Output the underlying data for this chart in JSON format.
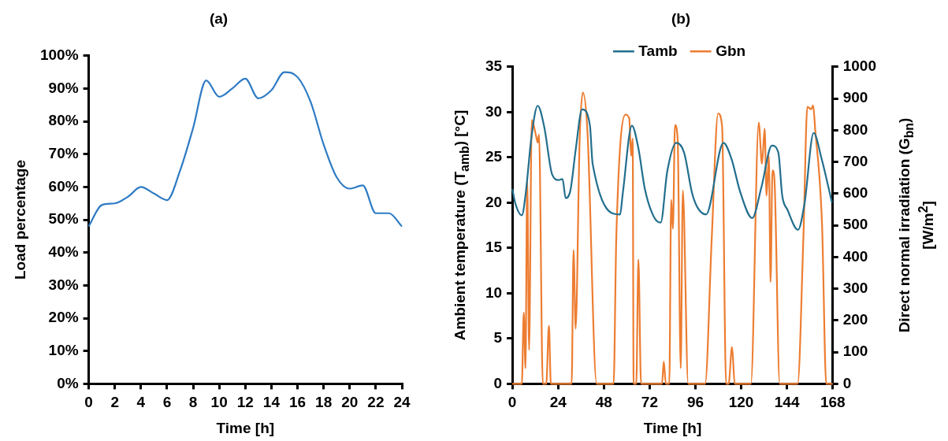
{
  "chart_data": [
    {
      "type": "line",
      "title": "(a)",
      "xlabel": "Time [h]",
      "ylabel": "Load percentage",
      "xlim": [
        0,
        24
      ],
      "xticks": [
        0,
        2,
        4,
        6,
        8,
        10,
        12,
        14,
        16,
        18,
        20,
        22,
        24
      ],
      "ylim": [
        0,
        100
      ],
      "yticks": [
        {
          "value": 0,
          "label": "0%"
        },
        {
          "value": 10,
          "label": "10%"
        },
        {
          "value": 20,
          "label": "20%"
        },
        {
          "value": 30,
          "label": "30%"
        },
        {
          "value": 40,
          "label": "40%"
        },
        {
          "value": 50,
          "label": "50%"
        },
        {
          "value": 60,
          "label": "60%"
        },
        {
          "value": 70,
          "label": "70%"
        },
        {
          "value": 80,
          "label": "80%"
        },
        {
          "value": 90,
          "label": "90%"
        },
        {
          "value": 100,
          "label": "100%"
        }
      ],
      "grid": false,
      "legend": false,
      "marker": "none",
      "line_style": "solid",
      "series": [
        {
          "color": "#2e7bc4",
          "x": [
            0,
            1,
            2,
            3,
            4,
            5,
            6,
            7,
            8,
            9,
            10,
            11,
            12,
            13,
            14,
            15,
            16,
            17,
            18,
            19,
            20,
            21,
            22,
            23,
            24
          ],
          "values": [
            48,
            54.5,
            55,
            57,
            60,
            58,
            56,
            65,
            78,
            92.5,
            87.5,
            90,
            93,
            87,
            89.5,
            95,
            93.5,
            86,
            73,
            63,
            59.5,
            60.5,
            52,
            52,
            48
          ]
        }
      ]
    },
    {
      "type": "line",
      "title": "(b)",
      "xlabel": "Time [h]",
      "ylabel": "Ambient temperature (T$_{amb}$) [°C]",
      "y2label": "Direct normal irradiation (G$_{bn}$) [W/m$^{2}$]",
      "xlim": [
        0,
        168
      ],
      "xticks": [
        0,
        24,
        48,
        72,
        96,
        120,
        144,
        168
      ],
      "ylim": [
        0,
        35
      ],
      "yticks": [
        0,
        5,
        10,
        15,
        20,
        25,
        30,
        35
      ],
      "y2lim": [
        0,
        1000
      ],
      "y2ticks": [
        0,
        100,
        200,
        300,
        400,
        500,
        600,
        700,
        800,
        900,
        1000
      ],
      "grid": false,
      "legend": "top",
      "marker": "none",
      "line_style": "solid",
      "series": [
        {
          "name": "Tamb",
          "color": "#236f8e",
          "x": [
            0,
            1.6,
            5,
            7,
            10,
            13.3,
            16.7,
            20.9,
            24.3,
            26.3,
            28,
            30.5,
            33.2,
            36.6,
            40.7,
            42.1,
            56.5,
            57.9,
            62.7,
            66.1,
            69.5,
            74.3,
            77.8,
            81.2,
            86,
            90.1,
            94.2,
            97,
            101.6,
            110.7,
            114.8,
            119.6,
            125.8,
            130.6,
            136.1,
            139.5,
            141.5,
            144.3,
            149.8,
            153.2,
            158,
            162.1,
            167.6
          ],
          "values": [
            21.5,
            19.9,
            18.6,
            21,
            27.2,
            30.7,
            28.4,
            23.1,
            22.5,
            22.6,
            20.5,
            21.4,
            25.8,
            30.3,
            28.5,
            24.3,
            18.7,
            21,
            28.5,
            26,
            21.5,
            18.4,
            17.8,
            23.4,
            26.6,
            25.5,
            21.1,
            19.5,
            18.7,
            26.6,
            24.9,
            21.1,
            18.3,
            21.7,
            26.3,
            25.5,
            20.8,
            19.2,
            17,
            19.9,
            27.7,
            24.9,
            20
          ]
        },
        {
          "name": "Gbn",
          "color": "#ed7d31",
          "axis": "y2",
          "x": [
            0,
            5,
            6,
            6.9,
            7.8,
            8.8,
            10.2,
            12.6,
            13.3,
            14,
            16,
            17.8,
            19.2,
            20.2,
            31.1,
            32.1,
            33.2,
            35.3,
            37,
            39.4,
            44.2,
            53.1,
            54.5,
            59.3,
            61.3,
            62.3,
            63.1,
            63.6,
            65,
            66.1,
            67.5,
            78.5,
            79.4,
            80.5,
            82.3,
            83.3,
            84.2,
            85.3,
            86.7,
            88.3,
            89.4,
            92.2,
            101.1,
            104.5,
            107.9,
            110,
            112.1,
            113.4,
            115.2,
            116.6,
            125.1,
            129.2,
            130.9,
            132.3,
            133.3,
            134.5,
            135.4,
            136.4,
            137.4,
            140.2,
            149.6,
            152.6,
            154.7,
            156.7,
            157.7,
            158.8,
            162.4,
            164.6,
            168
          ],
          "values": [
            0,
            0,
            225,
            49,
            644,
            107,
            832,
            778,
            761,
            786,
            0,
            0,
            183,
            0,
            0,
            422,
            174,
            770,
            919,
            795,
            0,
            0,
            459,
            849,
            837,
            719,
            774,
            0,
            0,
            392,
            0,
            0,
            70,
            0,
            0,
            581,
            489,
            816,
            770,
            49,
            610,
            0,
            0,
            451,
            853,
            811,
            0,
            0,
            116,
            0,
            0,
            824,
            694,
            805,
            593,
            719,
            321,
            673,
            648,
            0,
            0,
            459,
            874,
            866,
            878,
            803,
            501,
            0,
            0
          ]
        }
      ]
    }
  ]
}
